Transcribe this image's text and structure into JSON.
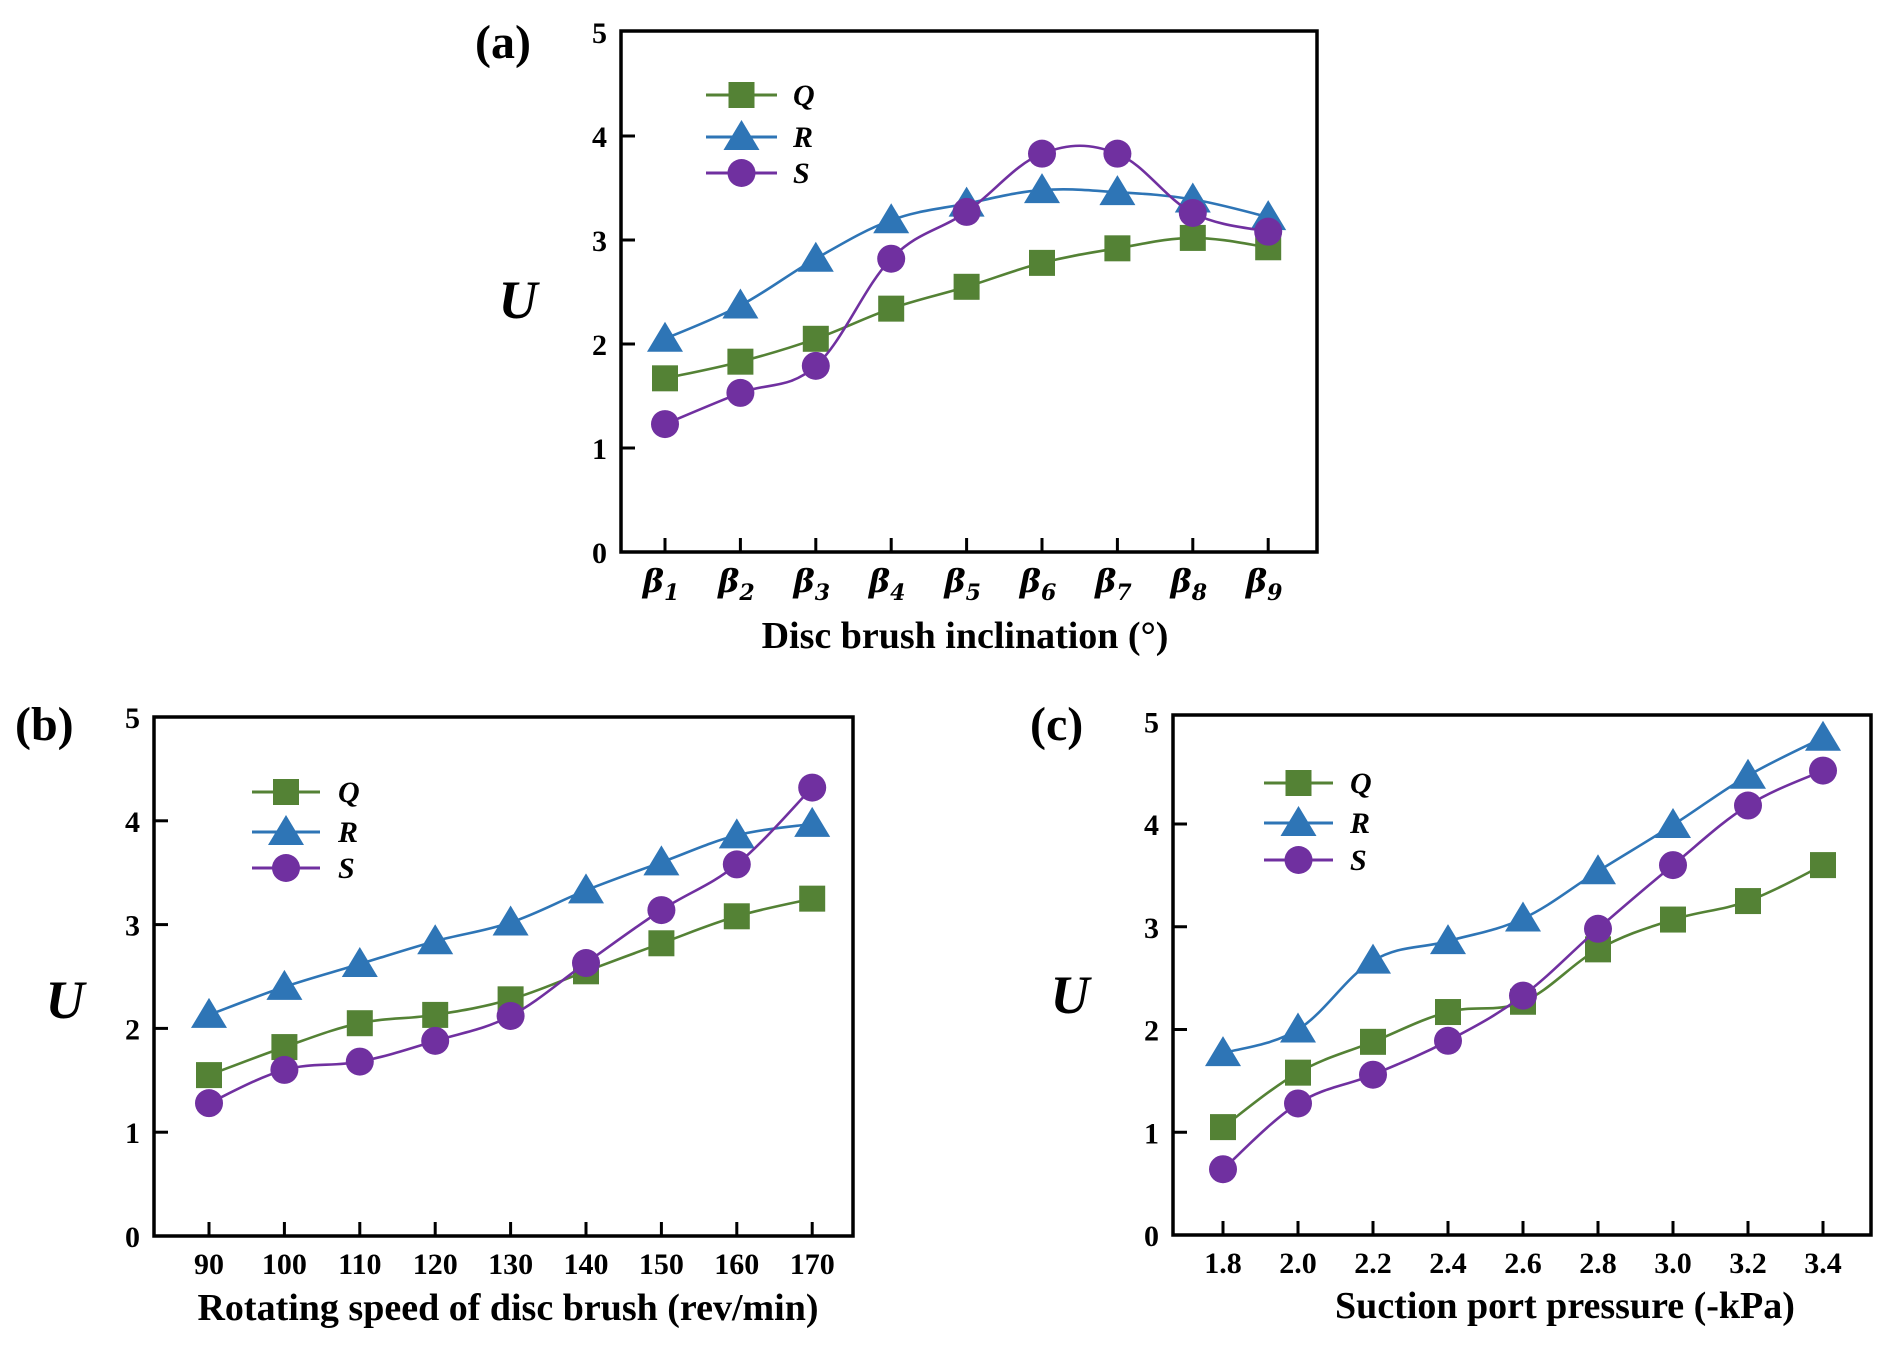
{
  "colors": {
    "Q": "#548235",
    "R": "#2E75B6",
    "S": "#7030A0",
    "axis": "#000000"
  },
  "chart_data": [
    {
      "type": "line",
      "panel_label": "(a)",
      "title": "",
      "xlabel": "Disc brush inclination (°)",
      "ylabel": "U",
      "categories": [
        "β1",
        "β2",
        "β3",
        "β4",
        "β5",
        "β6",
        "β7",
        "β8",
        "β9"
      ],
      "category_symbol": "β",
      "category_subscripts": [
        "1",
        "2",
        "3",
        "4",
        "5",
        "6",
        "7",
        "8",
        "9"
      ],
      "ylim": [
        0,
        5
      ],
      "yticks": [
        "0",
        "1",
        "2",
        "3",
        "4",
        "5"
      ],
      "legend_position": "top-left",
      "grid": false,
      "series": [
        {
          "name": "Q",
          "marker": "square",
          "values": [
            1.67,
            1.83,
            2.05,
            2.34,
            2.55,
            2.78,
            2.92,
            3.02,
            2.93
          ]
        },
        {
          "name": "R",
          "marker": "triangle",
          "values": [
            2.05,
            2.37,
            2.82,
            3.19,
            3.35,
            3.48,
            3.46,
            3.39,
            3.22
          ]
        },
        {
          "name": "S",
          "marker": "circle",
          "values": [
            1.23,
            1.53,
            1.79,
            2.82,
            3.27,
            3.83,
            3.83,
            3.26,
            3.08
          ]
        }
      ]
    },
    {
      "type": "line",
      "panel_label": "(b)",
      "title": "",
      "xlabel": "Rotating speed of disc brush (rev/min)",
      "ylabel": "U",
      "categories": [
        "90",
        "100",
        "110",
        "120",
        "130",
        "140",
        "150",
        "160",
        "170"
      ],
      "ylim": [
        0,
        5
      ],
      "yticks": [
        "0",
        "1",
        "2",
        "3",
        "4",
        "5"
      ],
      "legend_position": "top-left",
      "grid": false,
      "series": [
        {
          "name": "Q",
          "marker": "square",
          "values": [
            1.55,
            1.82,
            2.05,
            2.13,
            2.28,
            2.55,
            2.82,
            3.08,
            3.25
          ]
        },
        {
          "name": "R",
          "marker": "triangle",
          "values": [
            2.13,
            2.4,
            2.62,
            2.84,
            3.02,
            3.33,
            3.6,
            3.86,
            3.97
          ]
        },
        {
          "name": "S",
          "marker": "circle",
          "values": [
            1.28,
            1.6,
            1.68,
            1.88,
            2.12,
            2.63,
            3.14,
            3.58,
            4.32
          ]
        }
      ]
    },
    {
      "type": "line",
      "panel_label": "(c)",
      "title": "",
      "xlabel": "Suction port pressure (-kPa)",
      "ylabel": "U",
      "categories": [
        "1.8",
        "2.0",
        "2.2",
        "2.4",
        "2.6",
        "2.8",
        "3.0",
        "3.2",
        "3.4"
      ],
      "ylim": [
        0,
        5
      ],
      "yticks": [
        "0",
        "1",
        "2",
        "3",
        "4",
        "5"
      ],
      "legend_position": "top-left",
      "grid": false,
      "series": [
        {
          "name": "Q",
          "marker": "square",
          "values": [
            1.05,
            1.58,
            1.88,
            2.17,
            2.27,
            2.78,
            3.07,
            3.25,
            3.6
          ]
        },
        {
          "name": "R",
          "marker": "triangle",
          "values": [
            1.77,
            2.0,
            2.67,
            2.86,
            3.08,
            3.54,
            3.99,
            4.47,
            4.84
          ]
        },
        {
          "name": "S",
          "marker": "circle",
          "values": [
            0.64,
            1.28,
            1.56,
            1.89,
            2.33,
            2.98,
            3.6,
            4.18,
            4.52
          ]
        }
      ]
    }
  ]
}
